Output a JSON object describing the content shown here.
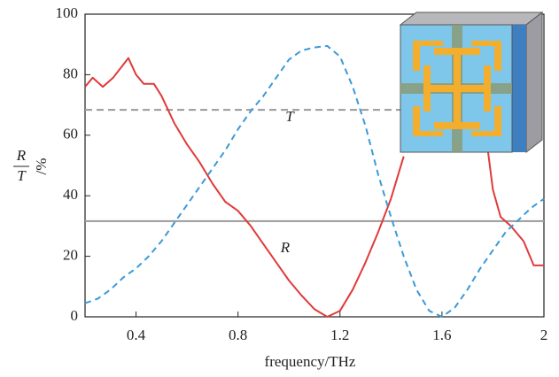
{
  "chart_data": {
    "type": "line",
    "x_label": "frequency/THz",
    "y_label": {
      "numerator": "R",
      "denominator": "T",
      "unit": "/%"
    },
    "xlim": [
      0.2,
      2.0
    ],
    "xticks": [
      0.4,
      0.8,
      1.2,
      1.6,
      2.0
    ],
    "ylim": [
      0,
      100
    ],
    "yticks": [
      0,
      20,
      40,
      60,
      80,
      100
    ],
    "reference_lines": [
      {
        "value": 68.4,
        "color": "#999999",
        "style": "dashed"
      },
      {
        "value": 31.6,
        "color": "#999999",
        "style": "solid"
      }
    ],
    "series": [
      {
        "name": "R",
        "color": "#e03a3a",
        "style": "solid",
        "x": [
          0.2,
          0.23,
          0.27,
          0.31,
          0.37,
          0.4,
          0.43,
          0.47,
          0.5,
          0.55,
          0.6,
          0.65,
          0.7,
          0.75,
          0.8,
          0.85,
          0.9,
          0.95,
          1.0,
          1.05,
          1.1,
          1.15,
          1.2,
          1.25,
          1.3,
          1.35,
          1.4,
          1.45,
          1.6,
          1.78,
          1.8,
          1.83,
          1.87,
          1.92,
          1.96,
          2.0
        ],
        "values": [
          76,
          79,
          76,
          79,
          85.5,
          80,
          77,
          77,
          73,
          64,
          57,
          51,
          44,
          38,
          35,
          30,
          24,
          18,
          12,
          7,
          2.5,
          0,
          2,
          9,
          18,
          28,
          39,
          53,
          null,
          55,
          42,
          33,
          30,
          25,
          17,
          17
        ]
      },
      {
        "name": "T",
        "color": "#3b9ad6",
        "style": "dashed",
        "x": [
          0.2,
          0.25,
          0.3,
          0.35,
          0.4,
          0.45,
          0.5,
          0.55,
          0.6,
          0.65,
          0.7,
          0.75,
          0.8,
          0.85,
          0.9,
          0.95,
          1.0,
          1.05,
          1.1,
          1.15,
          1.2,
          1.25,
          1.3,
          1.35,
          1.4,
          1.45,
          1.5,
          1.55,
          1.6,
          1.65,
          1.7,
          1.75,
          1.8,
          1.85,
          1.9,
          1.95,
          2.0
        ],
        "values": [
          4.5,
          6,
          9,
          13,
          16,
          20,
          25,
          31,
          37,
          43,
          49,
          55,
          62,
          68,
          73,
          79,
          85,
          88,
          89,
          89.5,
          86,
          76,
          63,
          47,
          33,
          20,
          9,
          2,
          0,
          3,
          9,
          16,
          22,
          28,
          32,
          36,
          39
        ]
      }
    ]
  }
}
